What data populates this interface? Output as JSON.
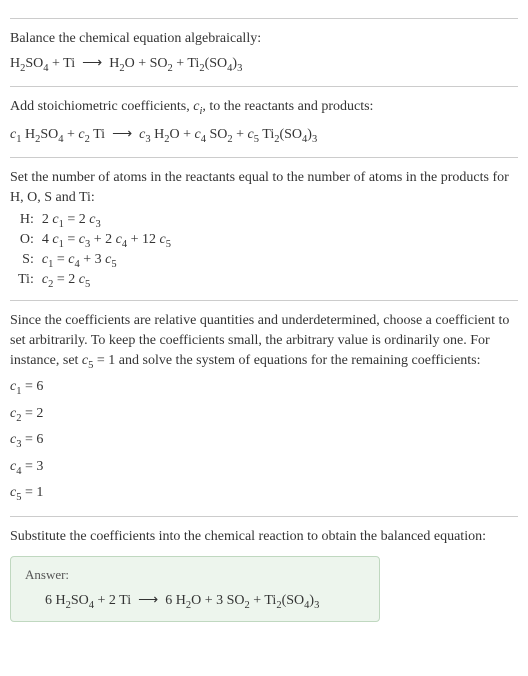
{
  "section1": {
    "title": "Balance the chemical equation algebraically:",
    "equation": "H<span class='sub'>2</span>SO<span class='sub'>4</span> + Ti &nbsp;<span class='arrow'>⟶</span>&nbsp; H<span class='sub'>2</span>O + SO<span class='sub'>2</span> + Ti<span class='sub'>2</span>(SO<span class='sub'>4</span>)<span class='sub'>3</span>"
  },
  "section2": {
    "title": "Add stoichiometric coefficients, <span class='italic'>c<span class='sub'>i</span></span>, to the reactants and products:",
    "equation": "<span class='italic'>c</span><span class='sub'>1</span> H<span class='sub'>2</span>SO<span class='sub'>4</span> + <span class='italic'>c</span><span class='sub'>2</span> Ti &nbsp;<span class='arrow'>⟶</span>&nbsp; <span class='italic'>c</span><span class='sub'>3</span> H<span class='sub'>2</span>O + <span class='italic'>c</span><span class='sub'>4</span> SO<span class='sub'>2</span> + <span class='italic'>c</span><span class='sub'>5</span> Ti<span class='sub'>2</span>(SO<span class='sub'>4</span>)<span class='sub'>3</span>"
  },
  "section3": {
    "title": "Set the number of atoms in the reactants equal to the number of atoms in the products for H, O, S and Ti:",
    "rows": [
      {
        "label": "H:",
        "eq": "2 <span class='italic'>c</span><span class='sub'>1</span> = 2 <span class='italic'>c</span><span class='sub'>3</span>"
      },
      {
        "label": "O:",
        "eq": "4 <span class='italic'>c</span><span class='sub'>1</span> = <span class='italic'>c</span><span class='sub'>3</span> + 2 <span class='italic'>c</span><span class='sub'>4</span> + 12 <span class='italic'>c</span><span class='sub'>5</span>"
      },
      {
        "label": "S:",
        "eq": "<span class='italic'>c</span><span class='sub'>1</span> = <span class='italic'>c</span><span class='sub'>4</span> + 3 <span class='italic'>c</span><span class='sub'>5</span>"
      },
      {
        "label": "Ti:",
        "eq": "<span class='italic'>c</span><span class='sub'>2</span> = 2 <span class='italic'>c</span><span class='sub'>5</span>"
      }
    ]
  },
  "section4": {
    "title": "Since the coefficients are relative quantities and underdetermined, choose a coefficient to set arbitrarily. To keep the coefficients small, the arbitrary value is ordinarily one. For instance, set <span class='italic'>c</span><span class='sub'>5</span> = 1 and solve the system of equations for the remaining coefficients:",
    "coeffs": [
      "<span class='italic'>c</span><span class='sub'>1</span> = 6",
      "<span class='italic'>c</span><span class='sub'>2</span> = 2",
      "<span class='italic'>c</span><span class='sub'>3</span> = 6",
      "<span class='italic'>c</span><span class='sub'>4</span> = 3",
      "<span class='italic'>c</span><span class='sub'>5</span> = 1"
    ]
  },
  "section5": {
    "title": "Substitute the coefficients into the chemical reaction to obtain the balanced equation:",
    "answer_label": "Answer:",
    "answer_eq": "6 H<span class='sub'>2</span>SO<span class='sub'>4</span> + 2 Ti &nbsp;<span class='arrow'>⟶</span>&nbsp; 6 H<span class='sub'>2</span>O + 3 SO<span class='sub'>2</span> + Ti<span class='sub'>2</span>(SO<span class='sub'>4</span>)<span class='sub'>3</span>"
  },
  "colors": {
    "text": "#333333",
    "divider": "#cccccc",
    "answer_bg": "#edf5ed",
    "answer_border": "#c0d8c0"
  }
}
